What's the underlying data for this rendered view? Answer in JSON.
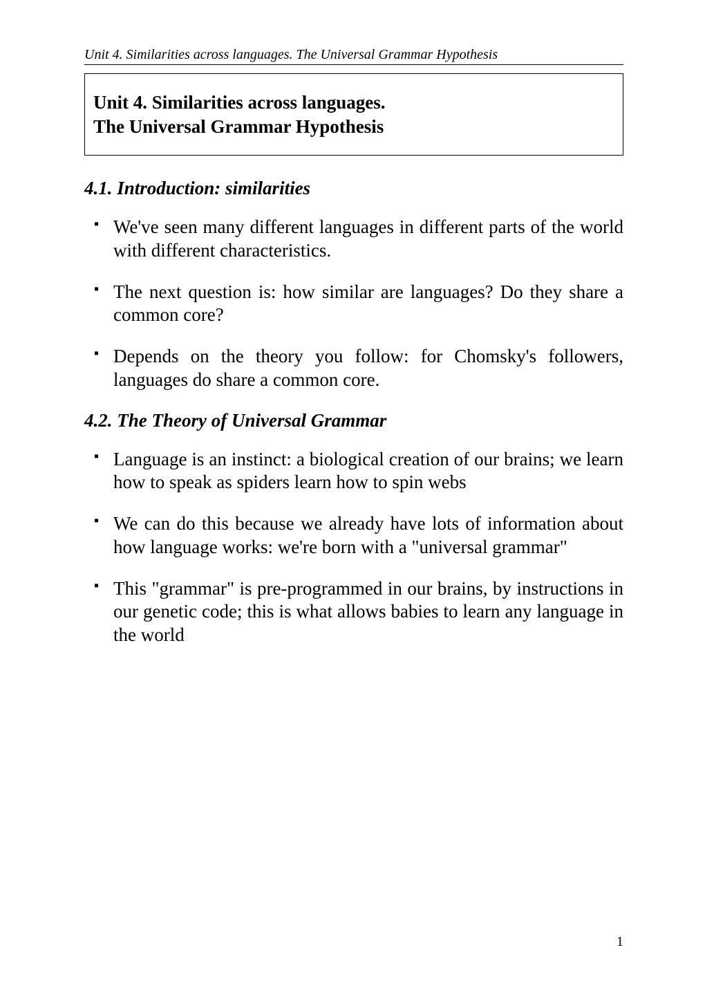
{
  "header": {
    "text": "Unit 4. Similarities across languages. The Universal Grammar Hypothesis"
  },
  "title": {
    "line1": "Unit 4. Similarities across languages.",
    "line2": "The Universal Grammar Hypothesis"
  },
  "sections": [
    {
      "heading": "4.1. Introduction: similarities",
      "bullets": [
        "We've seen many different languages in different parts of the world with different characteristics.",
        "The next question is: how similar are languages? Do they share a common core?",
        "Depends on the theory you follow: for Chomsky's followers, languages do share a common core."
      ]
    },
    {
      "heading": "4.2. The Theory of Universal Grammar",
      "bullets": [
        "Language is an instinct: a biological creation of our brains; we learn how to speak as spiders learn how to spin webs",
        "We can do this because we already have lots of information about how language works: we're born with a \"universal grammar\"",
        "This \"grammar\" is pre-programmed in our brains, by instructions in our genetic code; this is what allows babies to learn any language in the world"
      ]
    }
  ],
  "pageNumber": "1",
  "styles": {
    "background_color": "#ffffff",
    "text_color": "#000000",
    "border_color": "#000000",
    "font_family": "Times New Roman",
    "header_fontsize": 20,
    "title_fontsize": 27,
    "section_heading_fontsize": 27,
    "bullet_fontsize": 27,
    "page_number_fontsize": 20
  }
}
